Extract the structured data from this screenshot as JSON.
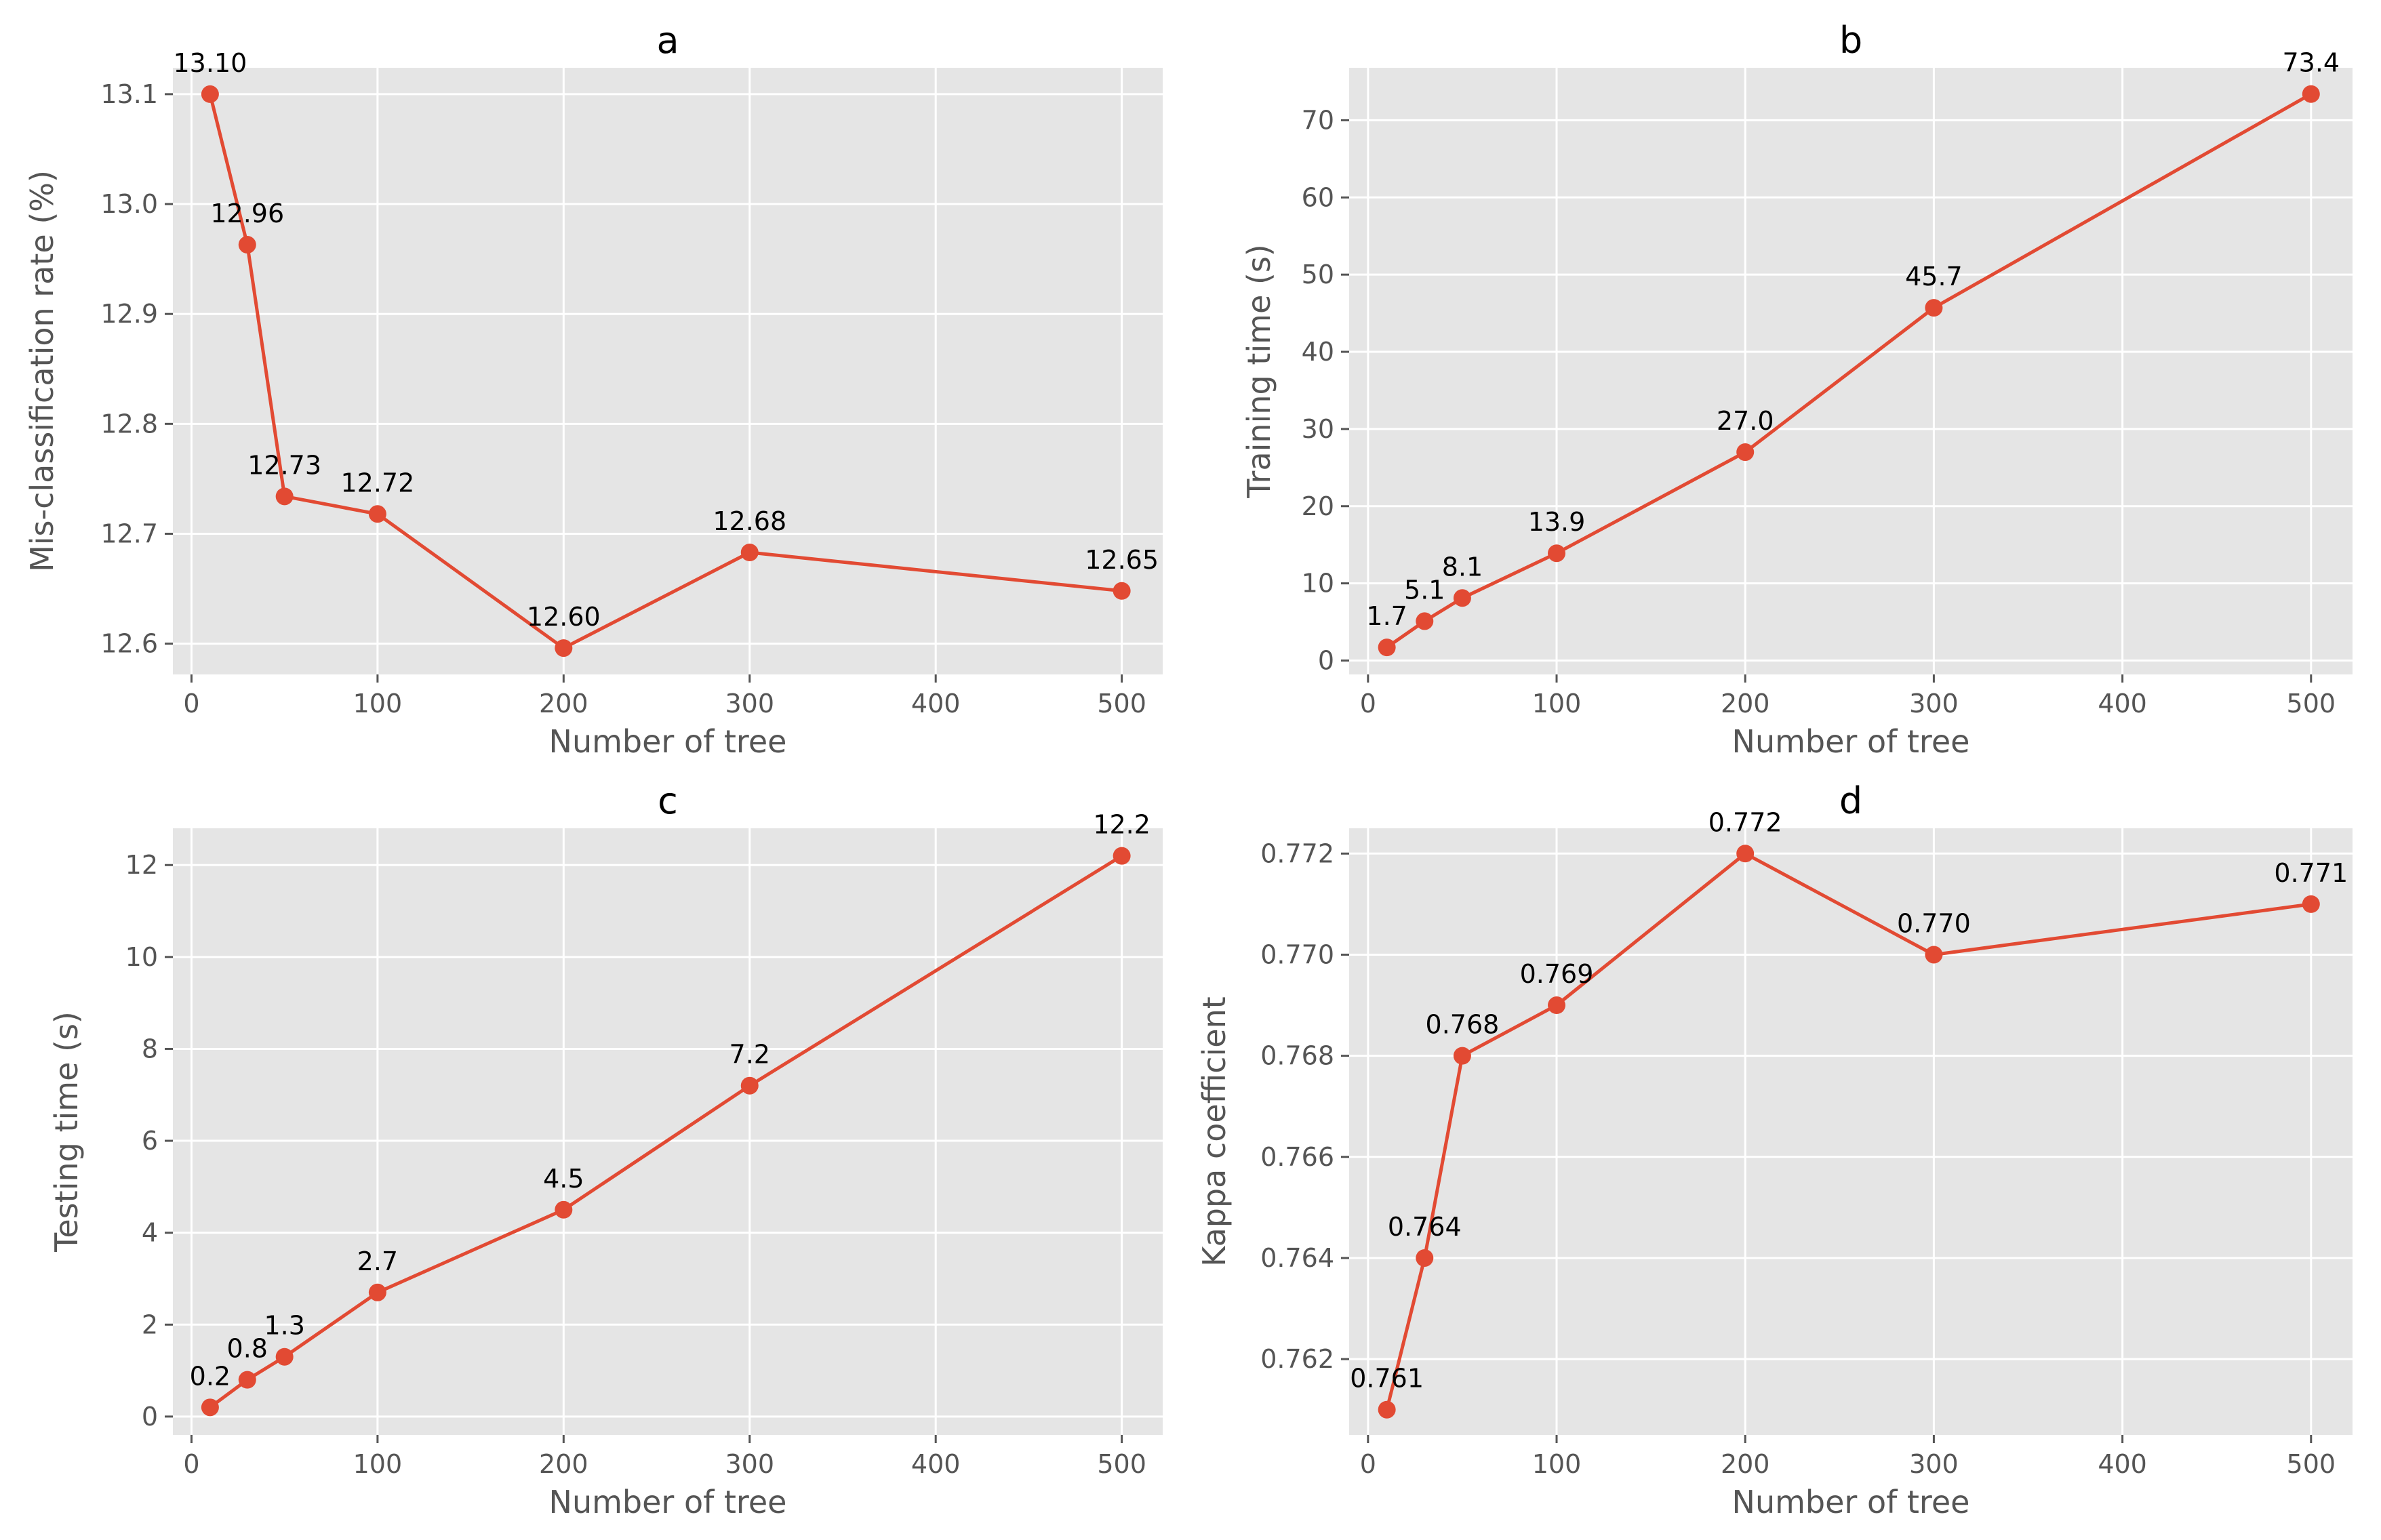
{
  "colors": {
    "series": "#e24a33",
    "plot_background": "#e5e5e5",
    "grid": "#ffffff",
    "text": "#555555"
  },
  "chart_data": [
    {
      "panel": "a",
      "type": "line",
      "title": "a",
      "xlabel": "Number of tree",
      "ylabel": "Mis-classification rate (%)",
      "x": [
        10,
        30,
        50,
        100,
        200,
        300,
        500
      ],
      "values": [
        13.1,
        12.963,
        12.734,
        12.718,
        12.596,
        12.683,
        12.648
      ],
      "labels": [
        "13.10",
        "12.96",
        "12.73",
        "12.72",
        "12.60",
        "12.68",
        "12.65"
      ],
      "xlim": [
        -10,
        522
      ],
      "ylim": [
        12.572,
        13.124
      ],
      "xticks": [
        0,
        100,
        200,
        300,
        400,
        500
      ],
      "yticks": [
        12.6,
        12.7,
        12.8,
        12.9,
        13.0,
        13.1
      ],
      "ytick_labels": [
        "12.6",
        "12.7",
        "12.8",
        "12.9",
        "13.0",
        "13.1"
      ],
      "grid": true,
      "marker": "circle"
    },
    {
      "panel": "b",
      "type": "line",
      "title": "b",
      "xlabel": "Number of tree",
      "ylabel": "Training time (s)",
      "x": [
        10,
        30,
        50,
        100,
        200,
        300,
        500
      ],
      "values": [
        1.7,
        5.1,
        8.1,
        13.9,
        27.0,
        45.7,
        73.4
      ],
      "labels": [
        "1.7",
        "5.1",
        "8.1",
        "13.9",
        "27.0",
        "45.7",
        "73.4"
      ],
      "xlim": [
        -10,
        522
      ],
      "ylim": [
        -1.8,
        76.8
      ],
      "xticks": [
        0,
        100,
        200,
        300,
        400,
        500
      ],
      "yticks": [
        0,
        10,
        20,
        30,
        40,
        50,
        60,
        70
      ],
      "ytick_labels": [
        "0",
        "10",
        "20",
        "30",
        "40",
        "50",
        "60",
        "70"
      ],
      "grid": true,
      "marker": "circle"
    },
    {
      "panel": "c",
      "type": "line",
      "title": "c",
      "xlabel": "Number of tree",
      "ylabel": "Testing time (s)",
      "x": [
        10,
        30,
        50,
        100,
        200,
        300,
        500
      ],
      "values": [
        0.2,
        0.8,
        1.3,
        2.7,
        4.5,
        7.2,
        12.2
      ],
      "labels": [
        "0.2",
        "0.8",
        "1.3",
        "2.7",
        "4.5",
        "7.2",
        "12.2"
      ],
      "xlim": [
        -10,
        522
      ],
      "ylim": [
        -0.4,
        12.8
      ],
      "xticks": [
        0,
        100,
        200,
        300,
        400,
        500
      ],
      "yticks": [
        0,
        2,
        4,
        6,
        8,
        10,
        12
      ],
      "ytick_labels": [
        "0",
        "2",
        "4",
        "6",
        "8",
        "10",
        "12"
      ],
      "grid": true,
      "marker": "circle"
    },
    {
      "panel": "d",
      "type": "line",
      "title": "d",
      "xlabel": "Number of tree",
      "ylabel": "Kappa coefficient",
      "x": [
        10,
        30,
        50,
        100,
        200,
        300,
        500
      ],
      "values": [
        0.761,
        0.764,
        0.768,
        0.769,
        0.772,
        0.77,
        0.771
      ],
      "labels": [
        "0.761",
        "0.764",
        "0.768",
        "0.769",
        "0.772",
        "0.770",
        "0.771"
      ],
      "xlim": [
        -10,
        522
      ],
      "ylim": [
        0.7605,
        0.7725
      ],
      "xticks": [
        0,
        100,
        200,
        300,
        400,
        500
      ],
      "yticks": [
        0.762,
        0.764,
        0.766,
        0.768,
        0.77,
        0.772
      ],
      "ytick_labels": [
        "0.762",
        "0.764",
        "0.766",
        "0.768",
        "0.770",
        "0.772"
      ],
      "grid": true,
      "marker": "circle"
    }
  ]
}
